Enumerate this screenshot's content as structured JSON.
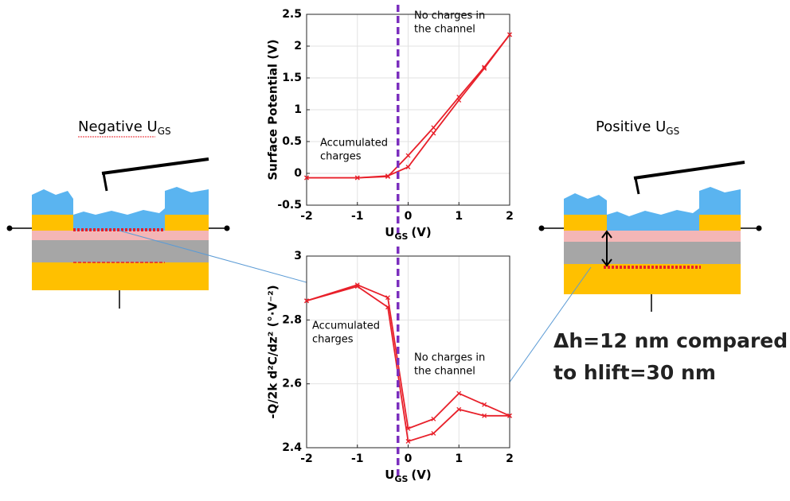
{
  "chart_data": [
    {
      "type": "line",
      "x": [
        -2,
        -1,
        -0.4,
        0,
        0.5,
        1,
        1.5,
        2
      ],
      "series": [
        {
          "color": "#e8202a",
          "values": [
            -0.07,
            -0.07,
            -0.05,
            0.28,
            0.72,
            1.2,
            1.67,
            2.18
          ]
        },
        {
          "color": "#e8202a",
          "values": [
            -0.07,
            -0.07,
            -0.04,
            0.1,
            0.63,
            1.15,
            1.65,
            2.18
          ]
        }
      ],
      "xlim": [
        -2,
        2
      ],
      "xticks": [
        -2,
        -1,
        0,
        1,
        2
      ],
      "ylim": [
        -0.5,
        2.5
      ],
      "yticks": [
        -0.5,
        0,
        0.5,
        1,
        1.5,
        2,
        2.5
      ],
      "ylabel": "Surface Potential (V)",
      "xlabel": [
        "U",
        "GS",
        "(V)"
      ],
      "vline": -0.2,
      "vline_color": "#7b2fbe",
      "grid": true,
      "annotations": [
        [
          "No charges in",
          "the channel"
        ],
        [
          "Accumulated",
          "charges"
        ]
      ]
    },
    {
      "type": "line",
      "x": [
        -2,
        -1,
        -0.4,
        0,
        0.5,
        1,
        1.5,
        2
      ],
      "series": [
        {
          "color": "#e8202a",
          "values": [
            2.86,
            2.91,
            2.87,
            2.46,
            2.49,
            2.57,
            2.535,
            2.5
          ]
        },
        {
          "color": "#e8202a",
          "values": [
            2.86,
            2.905,
            2.84,
            2.42,
            2.445,
            2.52,
            2.5,
            2.5
          ]
        }
      ],
      "xlim": [
        -2,
        2
      ],
      "xticks": [
        -2,
        -1,
        0,
        1,
        2
      ],
      "ylim": [
        2.4,
        3
      ],
      "yticks": [
        2.4,
        2.6,
        2.8,
        3
      ],
      "ylabel": "-Q/2k d²C/dz² (°·V⁻²)",
      "xlabel": [
        "U",
        "GS",
        "(V)"
      ],
      "vline": -0.2,
      "vline_color": "#7b2fbe",
      "grid": true,
      "annotations": [
        [
          "Accumulated",
          "charges"
        ],
        [
          "No charges in",
          "the channel"
        ]
      ]
    }
  ],
  "labels": {
    "negative": [
      "Negative U",
      "GS"
    ],
    "positive": [
      "Positive U",
      "GS"
    ],
    "note": [
      "Δh=12 nm compared",
      "to hlift=30 nm"
    ]
  }
}
